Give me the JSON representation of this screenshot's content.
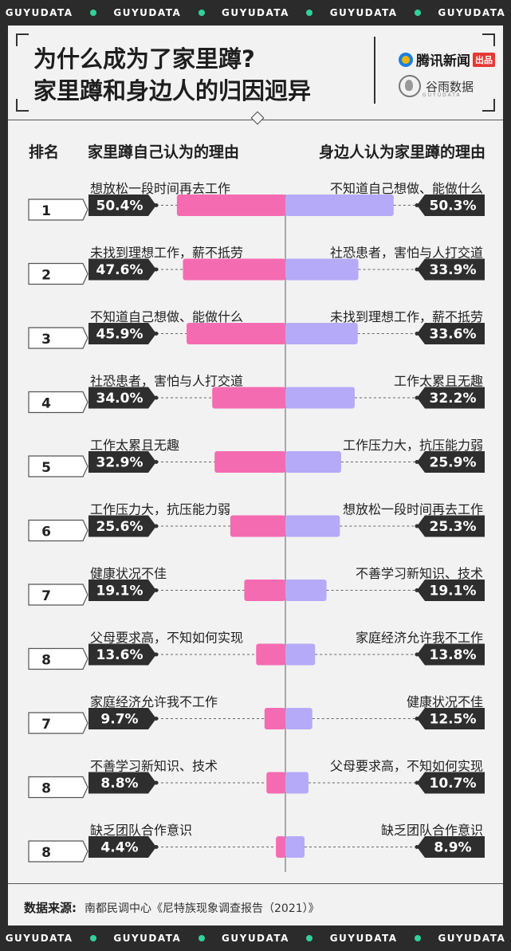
{
  "ticker_text": "GUYUDATA",
  "title_line1": "为什么成为了家里蹲?",
  "title_line2": "家里蹲和身边人的归因迥异",
  "logo_tencent_text": "腾讯新闻",
  "logo_tencent_badge": "出品",
  "logo_guyu_text": "谷雨数据",
  "logo_guyu_sub": "GUYUDATA",
  "colors": {
    "left_bar": "#f56bb1",
    "right_bar": "#b4aaf7",
    "dot": "#2fd39a",
    "dark": "#2e2e2e"
  },
  "chart_data": {
    "type": "bar",
    "header_rank": "排名",
    "left_header": "家里蹲自己认为的理由",
    "right_header": "身边人认为家里蹲的理由",
    "xlim": [
      0,
      60
    ],
    "rows": [
      {
        "rank": "1",
        "left_reason": "想放松一段时间再去工作",
        "left_value": 50.4,
        "left_label": "50.4%",
        "right_reason": "不知道自己想做、能做什么",
        "right_value": 50.3,
        "right_label": "50.3%"
      },
      {
        "rank": "2",
        "left_reason": "未找到理想工作，薪不抵劳",
        "left_value": 47.6,
        "left_label": "47.6%",
        "right_reason": "社恐患者，害怕与人打交道",
        "right_value": 33.9,
        "right_label": "33.9%"
      },
      {
        "rank": "3",
        "left_reason": "不知道自己想做、能做什么",
        "left_value": 45.9,
        "left_label": "45.9%",
        "right_reason": "未找到理想工作，薪不抵劳",
        "right_value": 33.6,
        "right_label": "33.6%"
      },
      {
        "rank": "4",
        "left_reason": "社恐患者，害怕与人打交道",
        "left_value": 34.0,
        "left_label": "34.0%",
        "right_reason": "工作太累且无趣",
        "right_value": 32.2,
        "right_label": "32.2%"
      },
      {
        "rank": "5",
        "left_reason": "工作太累且无趣",
        "left_value": 32.9,
        "left_label": "32.9%",
        "right_reason": "工作压力大，抗压能力弱",
        "right_value": 25.9,
        "right_label": "25.9%"
      },
      {
        "rank": "6",
        "left_reason": "工作压力大，抗压能力弱",
        "left_value": 25.6,
        "left_label": "25.6%",
        "right_reason": "想放松一段时间再去工作",
        "right_value": 25.3,
        "right_label": "25.3%"
      },
      {
        "rank": "7",
        "left_reason": "健康状况不佳",
        "left_value": 19.1,
        "left_label": "19.1%",
        "right_reason": "不善学习新知识、技术",
        "right_value": 19.1,
        "right_label": "19.1%"
      },
      {
        "rank": "8",
        "left_reason": "父母要求高，不知如何实现",
        "left_value": 13.6,
        "left_label": "13.6%",
        "right_reason": "家庭经济允许我不工作",
        "right_value": 13.8,
        "right_label": "13.8%"
      },
      {
        "rank": "7",
        "left_reason": "家庭经济允许我不工作",
        "left_value": 9.7,
        "left_label": "9.7%",
        "right_reason": "健康状况不佳",
        "right_value": 12.5,
        "right_label": "12.5%"
      },
      {
        "rank": "8",
        "left_reason": "不善学习新知识、技术",
        "left_value": 8.8,
        "left_label": "8.8%",
        "right_reason": "父母要求高，不知如何实现",
        "right_value": 10.7,
        "right_label": "10.7%"
      },
      {
        "rank": "8",
        "left_reason": "缺乏团队合作意识",
        "left_value": 4.4,
        "left_label": "4.4%",
        "right_reason": "缺乏团队合作意识",
        "right_value": 8.9,
        "right_label": "8.9%"
      }
    ]
  },
  "source_label": "数据来源:",
  "source_text": "南都民调中心《尼特族现象调查报告（2021）》"
}
